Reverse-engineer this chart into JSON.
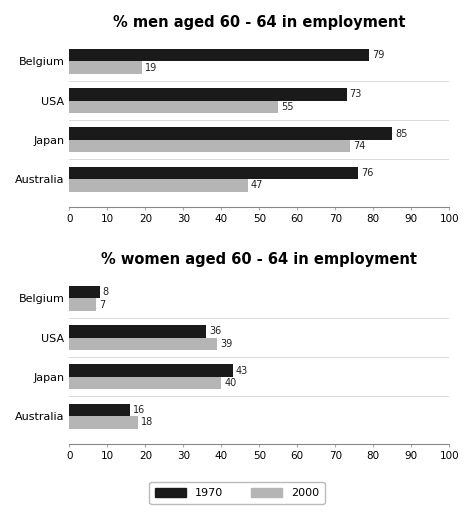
{
  "men_title": "% men aged 60 - 64 in employment",
  "women_title": "% women aged 60 - 64 in employment",
  "countries": [
    "Belgium",
    "USA",
    "Japan",
    "Australia"
  ],
  "men_1970": [
    79,
    73,
    85,
    76
  ],
  "men_2000": [
    19,
    55,
    74,
    47
  ],
  "women_1970": [
    8,
    36,
    43,
    16
  ],
  "women_2000": [
    7,
    39,
    40,
    18
  ],
  "color_1970": "#1a1a1a",
  "color_2000": "#b5b5b5",
  "xlim": [
    0,
    100
  ],
  "xticks": [
    0,
    10,
    20,
    30,
    40,
    50,
    60,
    70,
    80,
    90,
    100
  ],
  "legend_1970": "1970",
  "legend_2000": "2000",
  "bar_height": 0.32,
  "title_fontsize": 10.5,
  "tick_fontsize": 7.5,
  "label_fontsize": 8,
  "value_fontsize": 7,
  "background_color": "#ffffff"
}
